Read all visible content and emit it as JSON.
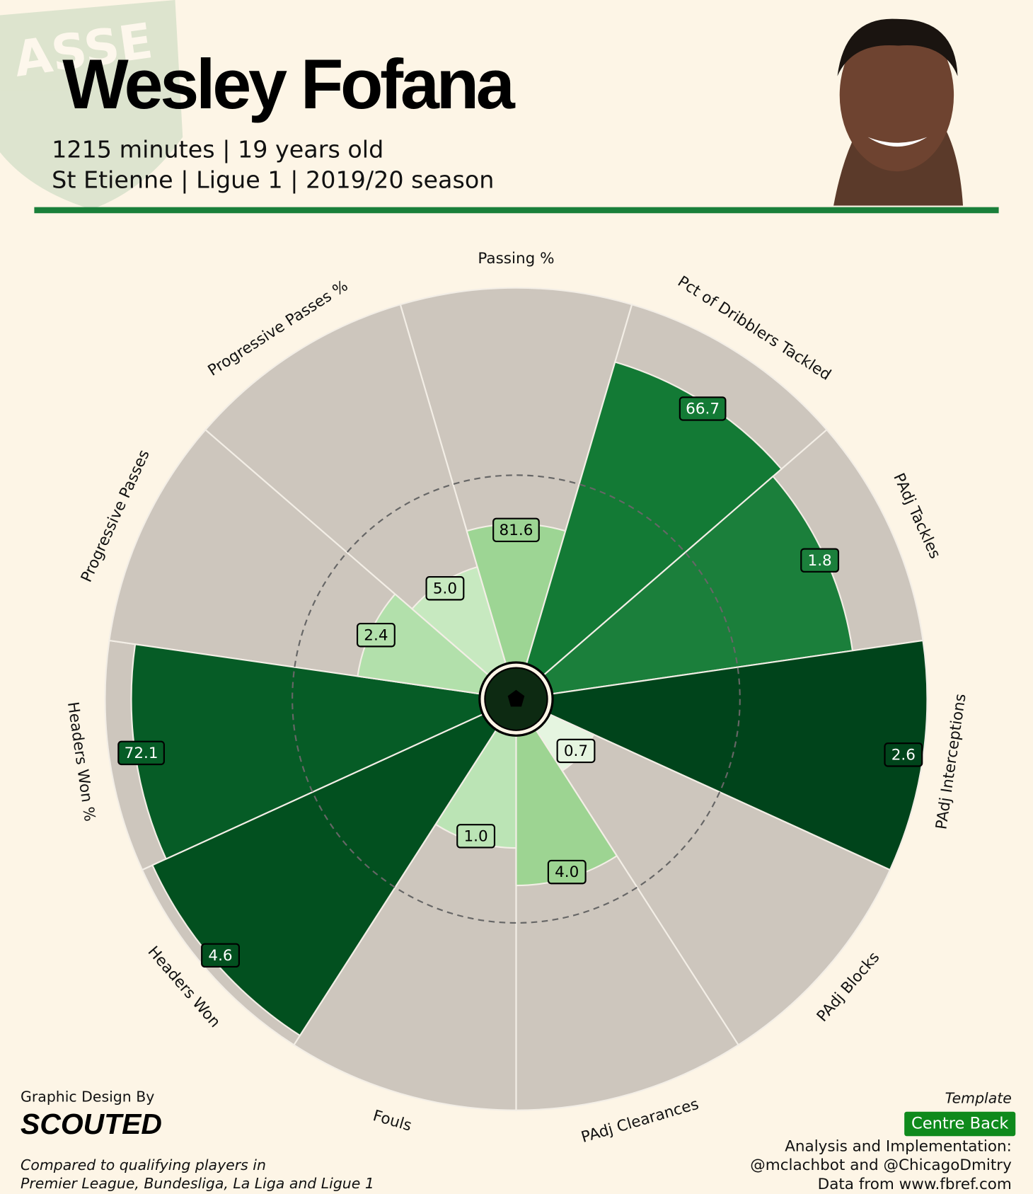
{
  "chart_data": {
    "type": "pizza",
    "title": "Wesley Fofana",
    "subtitle": [
      "1215 minutes | 19 years old",
      "St Etienne | Ligue 1 | 2019/20 season"
    ],
    "categories": [
      "Passing %",
      "Pct of Dribblers Tackled",
      "PAdj Tackles",
      "PAdj Interceptions",
      "PAdj Blocks",
      "PAdj Clearances",
      "Fouls",
      "Headers Won",
      "Headers Won %",
      "Progressive Passes",
      "Progressive Passes %"
    ],
    "values": [
      81.6,
      66.7,
      1.8,
      2.6,
      0.7,
      4.0,
      1.0,
      4.6,
      72.1,
      2.4,
      5.0
    ],
    "value_labels": [
      "81.6",
      "66.7",
      "1.8",
      "2.6",
      "0.7",
      "4.0",
      "1.0",
      "4.6",
      "72.1",
      "2.4",
      "5.0"
    ],
    "percentiles": [
      37,
      84,
      81,
      100,
      13,
      40,
      30,
      97,
      93,
      33,
      27
    ],
    "colors": [
      "#9dd594",
      "#137a35",
      "#1b7f3b",
      "#00441b",
      "#e5f5e0",
      "#9dd492",
      "#bbe4b5",
      "#02501f",
      "#065c26",
      "#b2e0ab",
      "#c7e9c0"
    ],
    "rlim": [
      0,
      100
    ],
    "reference_circle": 50,
    "footer_left": [
      "Graphic Design By",
      "SCOUTED",
      "Compared to qualifying players in",
      "Premier League, Bundesliga, La Liga and Ligue 1"
    ],
    "footer_right": [
      "Template",
      "Centre Back",
      "Analysis and Implementation:",
      "@mclachbot and @ChicagoDmitry",
      "Data from www.fbref.com"
    ],
    "logo_text": "ASSE"
  }
}
